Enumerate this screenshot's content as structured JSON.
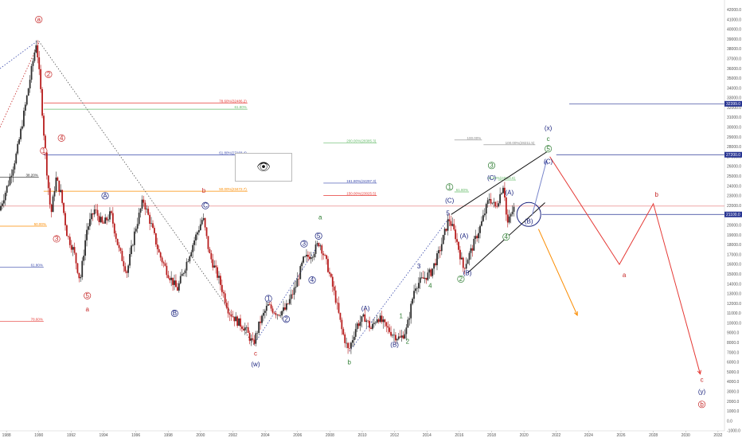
{
  "chart_data": {
    "type": "candlestick",
    "title": "",
    "xlabel": "",
    "ylabel": "",
    "ylim": [
      -1000,
      43000
    ],
    "xlim": [
      1987.6,
      2032.4
    ],
    "x_ticks": [
      "1988",
      "1990",
      "1992",
      "1994",
      "1996",
      "1998",
      "2000",
      "2002",
      "2004",
      "2006",
      "2008",
      "2010",
      "2012",
      "2014",
      "2016",
      "2018",
      "2020",
      "2022",
      "2024",
      "2026",
      "2028",
      "2030",
      "2032"
    ],
    "y_ticks": [
      "-1000.0",
      "0.0",
      "1000.0",
      "2000.0",
      "3000.0",
      "4000.0",
      "5000.0",
      "6000.0",
      "7000.0",
      "8000.0",
      "9000.0",
      "10000.0",
      "11000.0",
      "12000.0",
      "13000.0",
      "14000.0",
      "15000.0",
      "16000.0",
      "17000.0",
      "18000.0",
      "19000.0",
      "20000.0",
      "21000.0",
      "22000.0",
      "23000.0",
      "24000.0",
      "25000.0",
      "26000.0",
      "27000.0",
      "28000.0",
      "29000.0",
      "30000.0",
      "31000.0",
      "32000.0",
      "33000.0",
      "34000.0",
      "35000.0",
      "36000.0",
      "37000.0",
      "38000.0",
      "39000.0",
      "40000.0",
      "41000.0",
      "42000.0"
    ],
    "up_color": "#2e2e2e",
    "down_color": "#b71c1c",
    "price_path": [
      [
        1987.6,
        21500
      ],
      [
        1988.2,
        24500
      ],
      [
        1988.7,
        27500
      ],
      [
        1989.3,
        33000
      ],
      [
        1989.9,
        38800
      ],
      [
        1990.2,
        33000
      ],
      [
        1990.45,
        27200
      ],
      [
        1990.8,
        21000
      ],
      [
        1991.1,
        24800
      ],
      [
        1991.4,
        23300
      ],
      [
        1991.8,
        19000
      ],
      [
        1992.2,
        17400
      ],
      [
        1992.6,
        14300
      ],
      [
        1993.0,
        19500
      ],
      [
        1993.5,
        21600
      ],
      [
        1994.0,
        20000
      ],
      [
        1994.5,
        21200
      ],
      [
        1995.0,
        17500
      ],
      [
        1995.5,
        15200
      ],
      [
        1996.0,
        19500
      ],
      [
        1996.5,
        22600
      ],
      [
        1997.0,
        20000
      ],
      [
        1997.5,
        17000
      ],
      [
        1998.0,
        15200
      ],
      [
        1998.6,
        13400
      ],
      [
        1999.1,
        15800
      ],
      [
        1999.6,
        18200
      ],
      [
        2000.2,
        20800
      ],
      [
        2000.6,
        17000
      ],
      [
        2001.2,
        14400
      ],
      [
        2001.8,
        11200
      ],
      [
        2002.3,
        10200
      ],
      [
        2002.8,
        9500
      ],
      [
        2003.3,
        7800
      ],
      [
        2003.7,
        10000
      ],
      [
        2004.2,
        11800
      ],
      [
        2004.8,
        11000
      ],
      [
        2005.3,
        11400
      ],
      [
        2005.9,
        13600
      ],
      [
        2006.4,
        16400
      ],
      [
        2007.0,
        17200
      ],
      [
        2007.4,
        18300
      ],
      [
        2007.9,
        15800
      ],
      [
        2008.4,
        12500
      ],
      [
        2008.8,
        9200
      ],
      [
        2009.2,
        7100
      ],
      [
        2009.7,
        9800
      ],
      [
        2010.2,
        10600
      ],
      [
        2010.6,
        9400
      ],
      [
        2011.0,
        10700
      ],
      [
        2011.5,
        9600
      ],
      [
        2012.0,
        8800
      ],
      [
        2012.4,
        8400
      ],
      [
        2012.8,
        9400
      ],
      [
        2013.3,
        13800
      ],
      [
        2013.8,
        14500
      ],
      [
        2014.3,
        15200
      ],
      [
        2014.8,
        17200
      ],
      [
        2015.4,
        20700
      ],
      [
        2015.8,
        19000
      ],
      [
        2016.3,
        15600
      ],
      [
        2016.8,
        17500
      ],
      [
        2017.4,
        20100
      ],
      [
        2017.9,
        22800
      ],
      [
        2018.3,
        21800
      ],
      [
        2018.8,
        24300
      ],
      [
        2019.0,
        20000
      ],
      [
        2019.4,
        21700
      ]
    ],
    "wave_labels": [
      {
        "text": "a",
        "x": 1990.0,
        "y": 40800,
        "color": "#c62828",
        "circled": true
      },
      {
        "text": "2",
        "x": 1990.6,
        "y": 35200,
        "color": "#c62828",
        "circled": true
      },
      {
        "text": "1",
        "x": 1990.3,
        "y": 27400,
        "color": "#c62828",
        "circled": true
      },
      {
        "text": "4",
        "x": 1991.4,
        "y": 28700,
        "color": "#c62828",
        "circled": true
      },
      {
        "text": "3",
        "x": 1991.1,
        "y": 18400,
        "color": "#c62828",
        "circled": true
      },
      {
        "text": "5",
        "x": 1993.0,
        "y": 12600,
        "color": "#c62828",
        "circled": true
      },
      {
        "text": "a",
        "x": 1993.0,
        "y": 11200,
        "color": "#c62828",
        "circled": false
      },
      {
        "text": "A",
        "x": 1994.1,
        "y": 22800,
        "color": "#1a237e",
        "circled": true
      },
      {
        "text": "B",
        "x": 1998.4,
        "y": 10800,
        "color": "#1a237e",
        "circled": true
      },
      {
        "text": "b",
        "x": 2000.2,
        "y": 23300,
        "color": "#c62828",
        "circled": false
      },
      {
        "text": "C",
        "x": 2000.3,
        "y": 21800,
        "color": "#1a237e",
        "circled": true
      },
      {
        "text": "1",
        "x": 2004.2,
        "y": 12300,
        "color": "#1a237e",
        "circled": true
      },
      {
        "text": "2",
        "x": 2005.3,
        "y": 10200,
        "color": "#1a237e",
        "circled": true
      },
      {
        "text": "3",
        "x": 2006.4,
        "y": 17900,
        "color": "#1a237e",
        "circled": true
      },
      {
        "text": "4",
        "x": 2006.9,
        "y": 14200,
        "color": "#1a237e",
        "circled": true
      },
      {
        "text": "5",
        "x": 2007.3,
        "y": 18700,
        "color": "#1a237e",
        "circled": true
      },
      {
        "text": "a",
        "x": 2007.4,
        "y": 20600,
        "color": "#2e7d32",
        "circled": false
      },
      {
        "text": "c",
        "x": 2003.4,
        "y": 6700,
        "color": "#c62828",
        "circled": false
      },
      {
        "text": "(w)",
        "x": 2003.4,
        "y": 5600,
        "color": "#1a237e",
        "circled": false
      },
      {
        "text": "b",
        "x": 2009.2,
        "y": 5800,
        "color": "#2e7d32",
        "circled": false
      },
      {
        "text": "(A)",
        "x": 2010.2,
        "y": 11300,
        "color": "#1a237e",
        "circled": false
      },
      {
        "text": "(B)",
        "x": 2012.0,
        "y": 7600,
        "color": "#1a237e",
        "circled": false
      },
      {
        "text": "1",
        "x": 2012.4,
        "y": 10500,
        "color": "#2e7d32",
        "circled": false
      },
      {
        "text": "2",
        "x": 2012.8,
        "y": 7900,
        "color": "#2e7d32",
        "circled": false
      },
      {
        "text": "3",
        "x": 2013.5,
        "y": 15600,
        "color": "#1a237e",
        "circled": false
      },
      {
        "text": "4",
        "x": 2014.2,
        "y": 13600,
        "color": "#2e7d32",
        "circled": false
      },
      {
        "text": "5",
        "x": 2015.3,
        "y": 21000,
        "color": "#1a237e",
        "circled": false
      },
      {
        "text": "1",
        "x": 2015.4,
        "y": 23700,
        "color": "#2e7d32",
        "circled": true
      },
      {
        "text": "(C)",
        "x": 2015.4,
        "y": 22300,
        "color": "#1a237e",
        "circled": false
      },
      {
        "text": "(A)",
        "x": 2016.3,
        "y": 18700,
        "color": "#1a237e",
        "circled": false
      },
      {
        "text": "2",
        "x": 2016.1,
        "y": 14300,
        "color": "#2e7d32",
        "circled": true
      },
      {
        "text": "(B)",
        "x": 2016.5,
        "y": 14900,
        "color": "#1a237e",
        "circled": false
      },
      {
        "text": "3",
        "x": 2018.0,
        "y": 25900,
        "color": "#2e7d32",
        "circled": true
      },
      {
        "text": "(C)",
        "x": 2018.0,
        "y": 24600,
        "color": "#1a237e",
        "circled": false
      },
      {
        "text": "(A)",
        "x": 2019.1,
        "y": 23100,
        "color": "#1a237e",
        "circled": false
      },
      {
        "text": "4",
        "x": 2018.9,
        "y": 18600,
        "color": "#2e7d32",
        "circled": true
      },
      {
        "text": "(B)",
        "x": 2020.3,
        "y": 20200,
        "color": "#1a237e",
        "circled": false
      },
      {
        "text": "(x)",
        "x": 2021.5,
        "y": 29700,
        "color": "#1a237e",
        "circled": false
      },
      {
        "text": "c",
        "x": 2021.5,
        "y": 28600,
        "color": "#2e7d32",
        "circled": false
      },
      {
        "text": "5",
        "x": 2021.5,
        "y": 27600,
        "color": "#2e7d32",
        "circled": true
      },
      {
        "text": "(C)",
        "x": 2021.5,
        "y": 26300,
        "color": "#1a237e",
        "circled": false
      },
      {
        "text": "a",
        "x": 2026.2,
        "y": 14700,
        "color": "#c62828",
        "circled": false
      },
      {
        "text": "b",
        "x": 2028.2,
        "y": 22900,
        "color": "#c62828",
        "circled": false
      },
      {
        "text": "c",
        "x": 2031.0,
        "y": 4000,
        "color": "#c62828",
        "circled": false
      },
      {
        "text": "(y)",
        "x": 2031.0,
        "y": 2800,
        "color": "#1a237e",
        "circled": false
      },
      {
        "text": "b",
        "x": 2031.0,
        "y": 1500,
        "color": "#c62828",
        "circled": true
      }
    ],
    "level_lines": [
      {
        "label": "78.60%(32486.2)",
        "y": 32486,
        "x1": 1990.3,
        "x2": 2002.9,
        "color": "#e53935"
      },
      {
        "label": "61.80%",
        "y": 31850,
        "x1": 1990.3,
        "x2": 2002.9,
        "color": "#66bb6a"
      },
      {
        "label": "61.80%(27168.4)",
        "y": 27168,
        "x1": 1990.3,
        "x2": 2002.9,
        "color": "#3949ab"
      },
      {
        "label": "38.20%",
        "y": 24900,
        "x1": 1987.6,
        "x2": 1990.0,
        "color": "#222222"
      },
      {
        "label": "50.00%(23472.7)",
        "y": 23473,
        "x1": 1990.3,
        "x2": 2002.9,
        "color": "#fb8c00"
      },
      {
        "label": "",
        "y": 21950,
        "x1": 1987.6,
        "x2": 2032.4,
        "color": "#e57373"
      },
      {
        "label": "50.00%",
        "y": 19900,
        "x1": 1987.6,
        "x2": 1990.5,
        "color": "#fb8c00"
      },
      {
        "label": "61.80%",
        "y": 15700,
        "x1": 1987.6,
        "x2": 1990.3,
        "color": "#3949ab"
      },
      {
        "label": "78.60%",
        "y": 10200,
        "x1": 1987.6,
        "x2": 1990.3,
        "color": "#e53935"
      },
      {
        "label": "200.00%(28385.3)",
        "y": 28385,
        "x1": 2007.6,
        "x2": 2010.9,
        "color": "#66bb6a"
      },
      {
        "label": "100.00%",
        "y": 28700,
        "x1": 2015.7,
        "x2": 2017.4,
        "color": "#888888"
      },
      {
        "label": "100.00%(28211.5)",
        "y": 28212,
        "x1": 2017.5,
        "x2": 2020.7,
        "color": "#888888"
      },
      {
        "label": "161.80%(24297.3)",
        "y": 24297,
        "x1": 2007.6,
        "x2": 2010.9,
        "color": "#3949ab"
      },
      {
        "label": "61.80%",
        "y": 23400,
        "x1": 2015.7,
        "x2": 2016.6,
        "color": "#66bb6a"
      },
      {
        "label": "61.80%(24614.6)",
        "y": 24615,
        "x1": 2018.4,
        "x2": 2019.5,
        "color": "#66bb6a"
      },
      {
        "label": "150.00%(23025.5)",
        "y": 23026,
        "x1": 2007.6,
        "x2": 2010.9,
        "color": "#e53935"
      },
      {
        "label": "",
        "y": 32400,
        "x1": 2022.8,
        "x2": 2032.4,
        "color": "#283593"
      },
      {
        "label": "",
        "y": 27200,
        "x1": 2022.0,
        "x2": 2032.4,
        "color": "#283593"
      },
      {
        "label": "",
        "y": 21100,
        "x1": 2021.1,
        "x2": 2032.4,
        "color": "#283593"
      }
    ],
    "price_tags": [
      {
        "text": "32399.0",
        "y": 32400,
        "color": "#283593"
      },
      {
        "text": "27200.0",
        "y": 27200,
        "color": "#283593"
      },
      {
        "text": "21100.0",
        "y": 21100,
        "color": "#283593"
      }
    ],
    "projections": [
      {
        "color": "#e53935",
        "points": [
          [
            2021.6,
            27000
          ],
          [
            2025.9,
            16000
          ],
          [
            2028.0,
            22200
          ],
          [
            2030.9,
            4800
          ]
        ]
      },
      {
        "color": "#fb8c00",
        "points": [
          [
            2020.9,
            19600
          ],
          [
            2023.3,
            10800
          ]
        ]
      },
      {
        "color": "#7986cb",
        "points": [
          [
            2020.5,
            21000
          ],
          [
            2021.4,
            26600
          ]
        ]
      }
    ],
    "channel_lines": [
      {
        "color": "#111111",
        "points": [
          [
            2015.5,
            21100
          ],
          [
            2021.7,
            27800
          ]
        ]
      },
      {
        "color": "#111111",
        "points": [
          [
            2016.5,
            15100
          ],
          [
            2021.3,
            22300
          ]
        ]
      }
    ],
    "trend_lines": [
      {
        "color": "#555555",
        "style": "dotted",
        "points": [
          [
            1990.0,
            38800
          ],
          [
            2003.3,
            7800
          ]
        ]
      },
      {
        "color": "#c62828",
        "style": "dotted",
        "points": [
          [
            1987.6,
            30000
          ],
          [
            1990.0,
            38600
          ]
        ]
      },
      {
        "color": "#3949ab",
        "style": "dotted",
        "points": [
          [
            1987.6,
            36000
          ],
          [
            1989.9,
            38800
          ]
        ]
      },
      {
        "color": "#3949ab",
        "style": "dotted",
        "points": [
          [
            2009.2,
            7100
          ],
          [
            2015.4,
            20800
          ]
        ]
      },
      {
        "color": "#3949ab",
        "style": "dotted",
        "points": [
          [
            2003.3,
            7800
          ],
          [
            2007.4,
            18300
          ]
        ]
      }
    ],
    "target_circle": {
      "x": 2020.3,
      "y": 21100,
      "color": "#1a237e"
    }
  },
  "overlay": {
    "icon": "eye-icon",
    "glyph": "👁"
  }
}
